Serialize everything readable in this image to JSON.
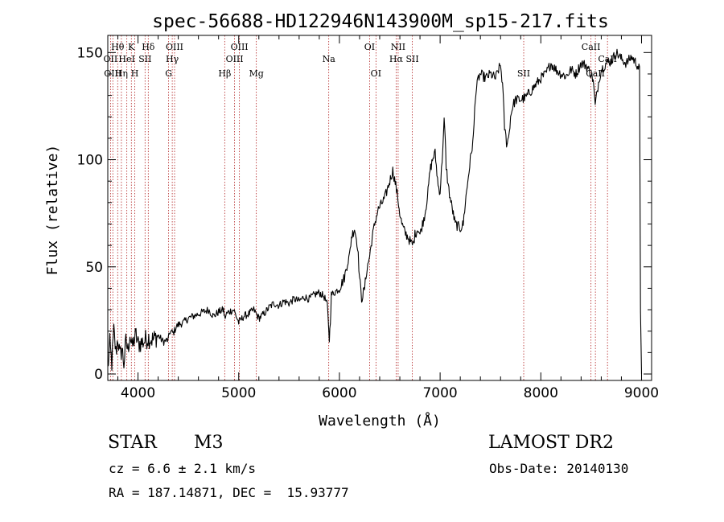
{
  "chart_data": {
    "type": "line",
    "title": "spec-56688-HD122946N143900M_sp15-217.fits",
    "xlabel": "Wavelength (Å)",
    "ylabel": "Flux (relative)",
    "xlim": [
      3700,
      9100
    ],
    "ylim": [
      -3,
      158
    ],
    "xticks": [
      4000,
      5000,
      6000,
      7000,
      8000,
      9000
    ],
    "yticks": [
      0,
      50,
      100,
      150
    ],
    "grid": false,
    "line_color": "#000000",
    "marker_color": "#b22222",
    "series": [
      {
        "x": [
          3700,
          3720,
          3740,
          3760,
          3780,
          3800,
          3820,
          3840,
          3860,
          3880,
          3900,
          3920,
          3940,
          3960,
          3980,
          4000,
          4050,
          4100,
          4150,
          4200,
          4250,
          4300,
          4320,
          4350,
          4380,
          4400,
          4450,
          4500,
          4550,
          4600,
          4650,
          4700,
          4750,
          4800,
          4850,
          4860,
          4880,
          4900,
          4950,
          5000,
          5050,
          5100,
          5150,
          5200,
          5250,
          5300,
          5350,
          5400,
          5450,
          5500,
          5550,
          5600,
          5650,
          5700,
          5750,
          5800,
          5850,
          5880,
          5900,
          5910,
          5920,
          5950,
          6000,
          6050,
          6080,
          6100,
          6120,
          6150,
          6180,
          6200,
          6220,
          6250,
          6270,
          6300,
          6320,
          6350,
          6380,
          6400,
          6450,
          6500,
          6530,
          6560,
          6580,
          6600,
          6620,
          6650,
          6680,
          6700,
          6730,
          6750,
          6780,
          6800,
          6850,
          6880,
          6900,
          6930,
          6950,
          6980,
          7000,
          7020,
          7040,
          7050,
          7060,
          7080,
          7100,
          7150,
          7200,
          7230,
          7250,
          7300,
          7330,
          7350,
          7380,
          7400,
          7450,
          7500,
          7550,
          7580,
          7600,
          7620,
          7640,
          7660,
          7680,
          7700,
          7720,
          7750,
          7800,
          7850,
          7900,
          7950,
          8000,
          8050,
          8100,
          8150,
          8200,
          8250,
          8300,
          8350,
          8400,
          8450,
          8500,
          8520,
          8540,
          8560,
          8580,
          8600,
          8650,
          8700,
          8750,
          8800,
          8850,
          8900,
          8950,
          8980,
          8990,
          9000
        ],
        "y": [
          2,
          14,
          5,
          20,
          10,
          17,
          8,
          12,
          5,
          15,
          11,
          19,
          12,
          16,
          18,
          14,
          15,
          17,
          16,
          18,
          15,
          16,
          20,
          19,
          22,
          23,
          24,
          26,
          27,
          28,
          29,
          30,
          27,
          29,
          30,
          26,
          28,
          29,
          30,
          24,
          27,
          28,
          30,
          26,
          28,
          31,
          33,
          32,
          34,
          33,
          35,
          34,
          36,
          35,
          37,
          38,
          36,
          32,
          16,
          25,
          37,
          38,
          40,
          45,
          52,
          55,
          64,
          68,
          60,
          45,
          35,
          40,
          48,
          55,
          62,
          70,
          76,
          78,
          82,
          90,
          95,
          88,
          82,
          75,
          70,
          66,
          64,
          62,
          60,
          65,
          68,
          65,
          75,
          85,
          95,
          101,
          103,
          88,
          85,
          100,
          118,
          110,
          97,
          88,
          82,
          70,
          68,
          70,
          80,
          100,
          110,
          130,
          138,
          140,
          138,
          140,
          138,
          142,
          144,
          135,
          115,
          108,
          110,
          120,
          125,
          128,
          128,
          129,
          132,
          135,
          138,
          140,
          145,
          142,
          140,
          139,
          142,
          140,
          145,
          144,
          140,
          137,
          125,
          132,
          138,
          142,
          145,
          146,
          150,
          147,
          145,
          148,
          145,
          142,
          30,
          0
        ]
      }
    ],
    "line_markers": [
      {
        "label": "Hθ",
        "x": 3798,
        "row": 1
      },
      {
        "label": "OII",
        "x": 3727,
        "row": 2
      },
      {
        "label": "OIII",
        "x": 3750,
        "row": 3
      },
      {
        "label": "Hη",
        "x": 3835,
        "row": 3
      },
      {
        "label": "HeI",
        "x": 3889,
        "row": 2
      },
      {
        "label": "K",
        "x": 3934,
        "row": 1
      },
      {
        "label": "H",
        "x": 3968,
        "row": 3
      },
      {
        "label": "SII",
        "x": 4070,
        "row": 2
      },
      {
        "label": "Hδ",
        "x": 4102,
        "row": 1
      },
      {
        "label": "OIII",
        "x": 4363,
        "row": 1
      },
      {
        "label": "Hγ",
        "x": 4340,
        "row": 2
      },
      {
        "label": "G",
        "x": 4304,
        "row": 3
      },
      {
        "label": "Hβ",
        "x": 4861,
        "row": 3
      },
      {
        "label": "OIII",
        "x": 5007,
        "row": 1
      },
      {
        "label": "OIII",
        "x": 4959,
        "row": 2
      },
      {
        "label": "Mg",
        "x": 5175,
        "row": 3
      },
      {
        "label": "Na",
        "x": 5894,
        "row": 2
      },
      {
        "label": "OI",
        "x": 6300,
        "row": 1
      },
      {
        "label": "OI",
        "x": 6363,
        "row": 3
      },
      {
        "label": "NII",
        "x": 6583,
        "row": 1
      },
      {
        "label": "Hα",
        "x": 6563,
        "row": 2
      },
      {
        "label": "SII",
        "x": 6724,
        "row": 2
      },
      {
        "label": "SII",
        "x": 7830,
        "row": 3
      },
      {
        "label": "CaII",
        "x": 8498,
        "row": 1
      },
      {
        "label": "CaII",
        "x": 8542,
        "row": 3
      },
      {
        "label": "CaII",
        "x": 8662,
        "row": 2
      }
    ]
  },
  "info": {
    "object_class": "STAR",
    "subclass": "M3",
    "survey": "LAMOST DR2",
    "redshift": "cz = 6.6 ± 2.1 km/s",
    "obs_date": "Obs-Date: 20140130",
    "coords": "RA = 187.14871, DEC =  15.93777"
  }
}
